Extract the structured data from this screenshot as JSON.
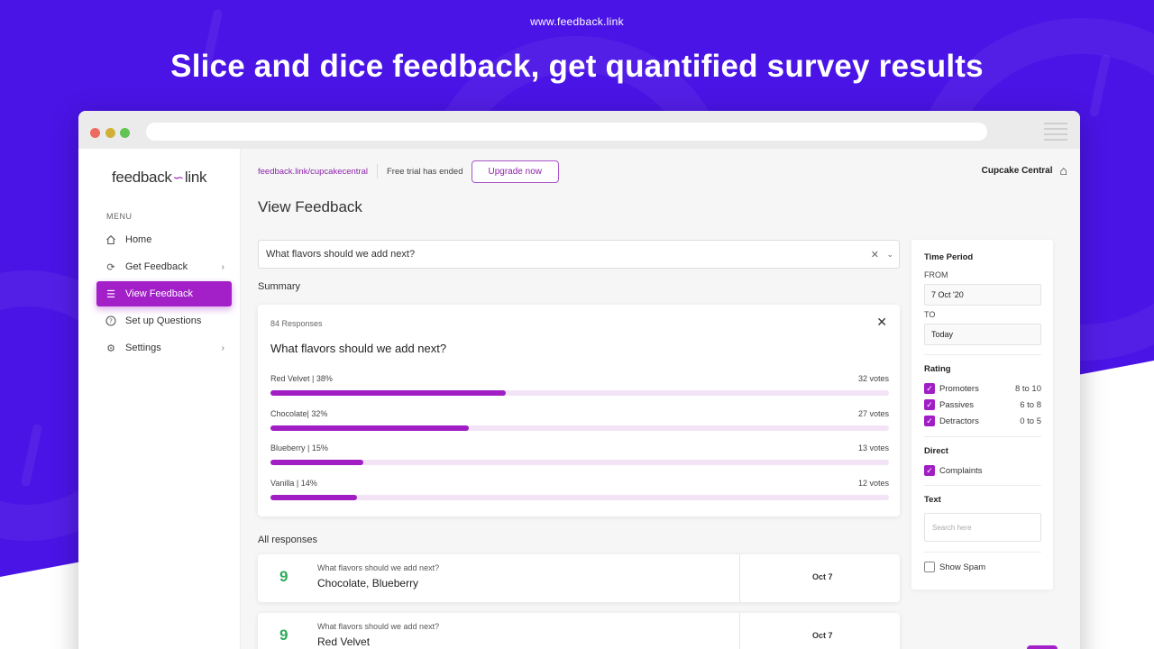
{
  "site_url": "www.feedback.link",
  "headline": "Slice and dice feedback, get quantified survey results",
  "sidebar": {
    "logo_left": "feedback",
    "logo_right": "link",
    "menu_label": "MENU",
    "items": [
      {
        "label": "Home",
        "icon": "home-icon"
      },
      {
        "label": "Get Feedback",
        "icon": "refresh-icon"
      },
      {
        "label": "View Feedback",
        "icon": "list-icon"
      },
      {
        "label": "Set up Questions",
        "icon": "question-icon"
      },
      {
        "label": "Settings",
        "icon": "gear-icon"
      }
    ]
  },
  "topbar": {
    "url": "feedback.link/cupcakecentral",
    "trial_status": "Free trial has ended",
    "upgrade_label": "Upgrade now",
    "org_name": "Cupcake Central"
  },
  "page_title": "View Feedback",
  "question_select": {
    "value": "What flavors should we add next?"
  },
  "summary": {
    "label": "Summary",
    "response_count": "84 Responses",
    "question": "What flavors should we add next?",
    "options": [
      {
        "label": "Red Velvet | 38%",
        "votes": "32 votes",
        "percent": 38
      },
      {
        "label": "Chocolate| 32%",
        "votes": "27 votes",
        "percent": 32
      },
      {
        "label": "Blueberry | 15%",
        "votes": "13 votes",
        "percent": 15
      },
      {
        "label": "Vanilla | 14%",
        "votes": "12 votes",
        "percent": 14
      }
    ]
  },
  "responses": {
    "label": "All responses",
    "items": [
      {
        "score": "9",
        "question": "What flavors should we add next?",
        "answer": "Chocolate, Blueberry",
        "date": "Oct 7"
      },
      {
        "score": "9",
        "question": "What flavors should we add next?",
        "answer": "Red Velvet",
        "date": "Oct 7"
      }
    ]
  },
  "filters": {
    "time_period": "Time Period",
    "from_label": "FROM",
    "from_value": "7 Oct '20",
    "to_label": "TO",
    "to_value": "Today",
    "rating_label": "Rating",
    "ratings": [
      {
        "label": "Promoters",
        "range": "8 to 10",
        "checked": true
      },
      {
        "label": "Passives",
        "range": "6 to 8",
        "checked": true
      },
      {
        "label": "Detractors",
        "range": "0 to 5",
        "checked": true
      }
    ],
    "direct_label": "Direct",
    "complaints_label": "Complaints",
    "text_label": "Text",
    "search_placeholder": "Search here",
    "show_spam_label": "Show Spam"
  },
  "colors": {
    "background": "#4a14e6",
    "accent": "#a320c9",
    "score_green": "#2eaa5a"
  }
}
